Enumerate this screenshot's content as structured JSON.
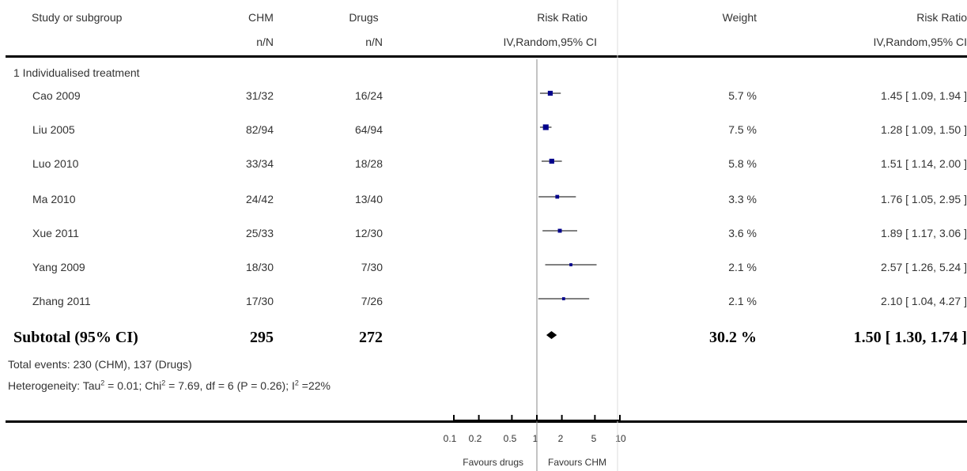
{
  "header": {
    "study_col": "Study or subgroup",
    "chm_col": "CHM",
    "chm_sub": "n/N",
    "drugs_col": "Drugs",
    "drugs_sub": "n/N",
    "rr_col": "Risk Ratio",
    "rr_sub": "IV,Random,95% CI",
    "weight_col": "Weight",
    "rr2_col": "Risk Ratio",
    "rr2_sub": "IV,Random,95% CI"
  },
  "subgroup_label": "1 Individualised treatment",
  "studies": [
    {
      "name": "Cao 2009",
      "chm": "31/32",
      "drugs": "16/24",
      "weight": "5.7 %",
      "ci_text": "1.45 [ 1.09, 1.94 ]"
    },
    {
      "name": "Liu 2005",
      "chm": "82/94",
      "drugs": "64/94",
      "weight": "7.5 %",
      "ci_text": "1.28 [ 1.09, 1.50 ]"
    },
    {
      "name": "Luo 2010",
      "chm": "33/34",
      "drugs": "18/28",
      "weight": "5.8 %",
      "ci_text": "1.51 [ 1.14, 2.00 ]"
    },
    {
      "name": "Ma 2010",
      "chm": "24/42",
      "drugs": "13/40",
      "weight": "3.3 %",
      "ci_text": "1.76 [ 1.05, 2.95 ]"
    },
    {
      "name": "Xue 2011",
      "chm": "25/33",
      "drugs": "12/30",
      "weight": "3.6 %",
      "ci_text": "1.89 [ 1.17, 3.06 ]"
    },
    {
      "name": "Yang 2009",
      "chm": "18/30",
      "drugs": "7/30",
      "weight": "2.1 %",
      "ci_text": "2.57 [ 1.26, 5.24 ]"
    },
    {
      "name": "Zhang 2011",
      "chm": "17/30",
      "drugs": "7/26",
      "weight": "2.1 %",
      "ci_text": "2.10 [ 1.04, 4.27 ]"
    }
  ],
  "subtotal": {
    "label": "Subtotal (95% CI)",
    "chm": "295",
    "drugs": "272",
    "weight": "30.2 %",
    "ci_text": "1.50 [ 1.30, 1.74 ]"
  },
  "total_events": "Total events: 230 (CHM), 137 (Drugs)",
  "heterogeneity": {
    "p1": "Heterogeneity: Tau",
    "p2": " = 0.01; Chi",
    "p3": " = 7.69, df = 6 (P = 0.26); I",
    "p4": " =22%",
    "sup": "2"
  },
  "axis": {
    "ticks": [
      "0.1",
      "0.2",
      "0.5",
      "1",
      "2",
      "5",
      "10"
    ],
    "left_label": "Favours drugs",
    "right_label": "Favours CHM"
  },
  "colors": {
    "square": "#00008b",
    "line": "#000000"
  },
  "chart_data": {
    "type": "forest",
    "scale": "log",
    "xlim": [
      0.1,
      10
    ],
    "null_value": 1,
    "studies": [
      {
        "name": "Cao 2009",
        "rr": 1.45,
        "lo": 1.09,
        "hi": 1.94,
        "weight": 5.7
      },
      {
        "name": "Liu 2005",
        "rr": 1.28,
        "lo": 1.09,
        "hi": 1.5,
        "weight": 7.5
      },
      {
        "name": "Luo 2010",
        "rr": 1.51,
        "lo": 1.14,
        "hi": 2.0,
        "weight": 5.8
      },
      {
        "name": "Ma 2010",
        "rr": 1.76,
        "lo": 1.05,
        "hi": 2.95,
        "weight": 3.3
      },
      {
        "name": "Xue 2011",
        "rr": 1.89,
        "lo": 1.17,
        "hi": 3.06,
        "weight": 3.6
      },
      {
        "name": "Yang 2009",
        "rr": 2.57,
        "lo": 1.26,
        "hi": 5.24,
        "weight": 2.1
      },
      {
        "name": "Zhang 2011",
        "rr": 2.1,
        "lo": 1.04,
        "hi": 4.27,
        "weight": 2.1
      }
    ],
    "subtotal": {
      "rr": 1.5,
      "lo": 1.3,
      "hi": 1.74,
      "weight": 30.2
    }
  }
}
